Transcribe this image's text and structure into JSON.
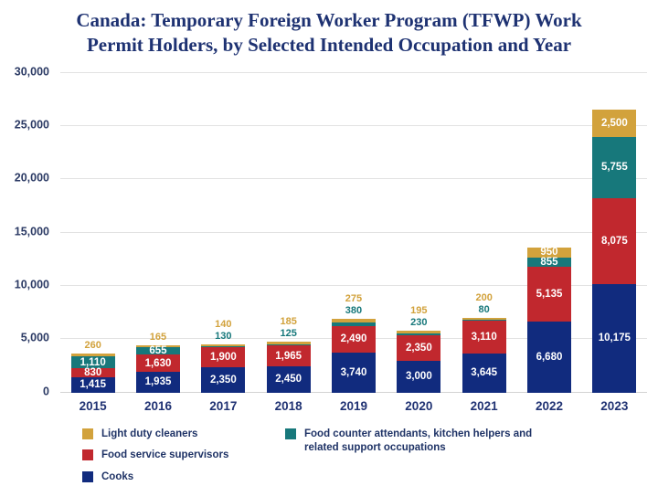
{
  "chart_data": {
    "type": "bar",
    "stacked": true,
    "title": "Canada: Temporary Foreign Worker Program (TFWP) Work Permit Holders, by Selected Intended Occupation and Year",
    "categories": [
      "2015",
      "2016",
      "2017",
      "2018",
      "2019",
      "2020",
      "2021",
      "2022",
      "2023"
    ],
    "series": [
      {
        "name": "Cooks",
        "color": "#112b7e",
        "values": [
          1415,
          1935,
          2350,
          2450,
          3740,
          3000,
          3645,
          6680,
          10175
        ]
      },
      {
        "name": "Food service supervisors",
        "color": "#c1282e",
        "values": [
          830,
          1630,
          1900,
          1965,
          2490,
          2350,
          3110,
          5135,
          8075
        ]
      },
      {
        "name": "Food counter attendants, kitchen helpers and related support occupations",
        "color": "#17787b",
        "values": [
          1110,
          655,
          130,
          125,
          380,
          230,
          80,
          855,
          5755
        ]
      },
      {
        "name": "Light duty cleaners",
        "color": "#d2a23c",
        "values": [
          260,
          165,
          140,
          185,
          275,
          195,
          200,
          950,
          2500
        ]
      }
    ],
    "xlabel": "",
    "ylabel": "",
    "ylim": [
      0,
      30000
    ],
    "grid": true,
    "yticks": [
      {
        "value": 0,
        "label": "0"
      },
      {
        "value": 5000,
        "label": "5,000"
      },
      {
        "value": 10000,
        "label": "10,000"
      },
      {
        "value": 15000,
        "label": "15,000"
      },
      {
        "value": 20000,
        "label": "20,000"
      },
      {
        "value": 25000,
        "label": "25,000"
      },
      {
        "value": 30000,
        "label": "30,000"
      }
    ],
    "legend_position": "bottom",
    "legend_columns": [
      [
        3,
        1,
        0
      ],
      [
        2
      ]
    ],
    "value_label_placement": "inside-or-above-when-thin"
  },
  "colors": {
    "title_text": "#1e3272",
    "axis_text": "#2b3a64",
    "x_label_text": "#203273",
    "gridline": "#e2e2e2",
    "value_label_inside": "#ffffff",
    "background": "#ffffff"
  }
}
